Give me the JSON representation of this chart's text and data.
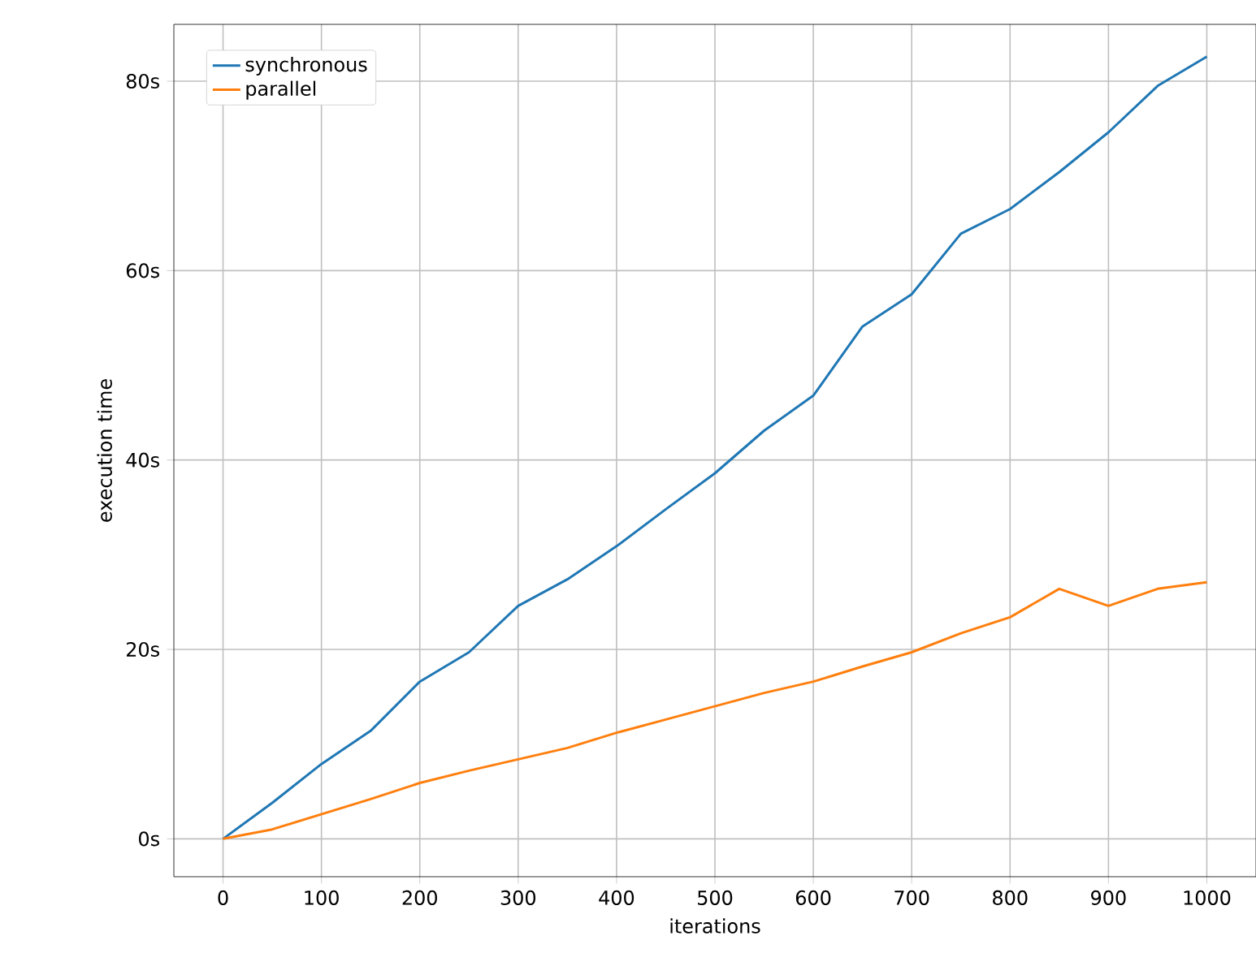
{
  "chart_data": {
    "type": "line",
    "xlabel": "iterations",
    "ylabel": "execution time",
    "x": [
      0,
      50,
      100,
      150,
      200,
      250,
      300,
      350,
      400,
      450,
      500,
      550,
      600,
      650,
      700,
      750,
      800,
      850,
      900,
      950,
      1000
    ],
    "series": [
      {
        "name": "synchronous",
        "color": "#1f77b4",
        "values": [
          0,
          3.8,
          7.9,
          11.4,
          16.6,
          19.7,
          24.6,
          27.4,
          30.9,
          34.8,
          38.6,
          43.1,
          46.8,
          54.1,
          57.5,
          63.9,
          66.5,
          70.4,
          74.6,
          79.5,
          82.6
        ]
      },
      {
        "name": "parallel",
        "color": "#ff7f0e",
        "values": [
          0,
          1.0,
          2.6,
          4.2,
          5.9,
          7.2,
          8.4,
          9.6,
          11.2,
          12.6,
          14.0,
          15.4,
          16.6,
          18.2,
          19.7,
          21.7,
          23.4,
          26.4,
          24.6,
          26.4,
          27.1
        ]
      }
    ],
    "xlim": [
      -50,
      1050
    ],
    "ylim": [
      -4,
      86
    ],
    "xticks": [
      0,
      100,
      200,
      300,
      400,
      500,
      600,
      700,
      800,
      900,
      1000
    ],
    "yticks": [
      {
        "value": 0,
        "label": "0s"
      },
      {
        "value": 20,
        "label": "20s"
      },
      {
        "value": 40,
        "label": "40s"
      },
      {
        "value": 60,
        "label": "60s"
      },
      {
        "value": 80,
        "label": "80s"
      }
    ],
    "grid": true,
    "legend": "top left"
  }
}
